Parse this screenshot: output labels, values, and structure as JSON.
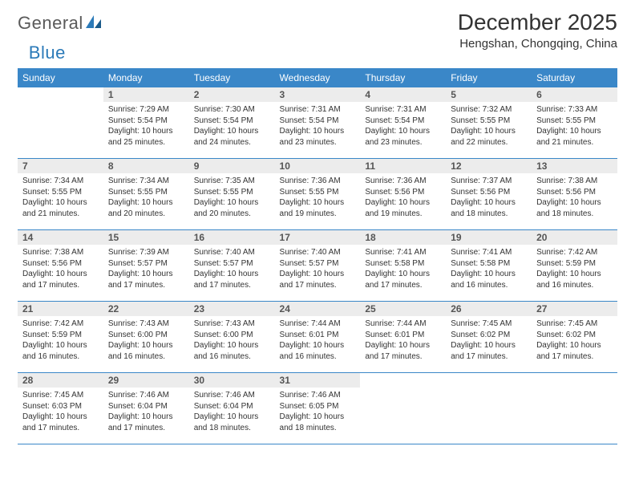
{
  "logo": {
    "word1": "General",
    "word2": "Blue",
    "color1": "#5a5a5a",
    "color2": "#2b7ab8"
  },
  "title": "December 2025",
  "location": "Hengshan, Chongqing, China",
  "header_bg": "#3a87c8",
  "number_bg": "#ececec",
  "weekdays": [
    "Sunday",
    "Monday",
    "Tuesday",
    "Wednesday",
    "Thursday",
    "Friday",
    "Saturday"
  ],
  "weeks": [
    [
      {
        "n": "",
        "empty": true,
        "sunrise": "",
        "sunset": "",
        "daylight": ""
      },
      {
        "n": "1",
        "sunrise": "Sunrise: 7:29 AM",
        "sunset": "Sunset: 5:54 PM",
        "daylight": "Daylight: 10 hours and 25 minutes."
      },
      {
        "n": "2",
        "sunrise": "Sunrise: 7:30 AM",
        "sunset": "Sunset: 5:54 PM",
        "daylight": "Daylight: 10 hours and 24 minutes."
      },
      {
        "n": "3",
        "sunrise": "Sunrise: 7:31 AM",
        "sunset": "Sunset: 5:54 PM",
        "daylight": "Daylight: 10 hours and 23 minutes."
      },
      {
        "n": "4",
        "sunrise": "Sunrise: 7:31 AM",
        "sunset": "Sunset: 5:54 PM",
        "daylight": "Daylight: 10 hours and 23 minutes."
      },
      {
        "n": "5",
        "sunrise": "Sunrise: 7:32 AM",
        "sunset": "Sunset: 5:55 PM",
        "daylight": "Daylight: 10 hours and 22 minutes."
      },
      {
        "n": "6",
        "sunrise": "Sunrise: 7:33 AM",
        "sunset": "Sunset: 5:55 PM",
        "daylight": "Daylight: 10 hours and 21 minutes."
      }
    ],
    [
      {
        "n": "7",
        "sunrise": "Sunrise: 7:34 AM",
        "sunset": "Sunset: 5:55 PM",
        "daylight": "Daylight: 10 hours and 21 minutes."
      },
      {
        "n": "8",
        "sunrise": "Sunrise: 7:34 AM",
        "sunset": "Sunset: 5:55 PM",
        "daylight": "Daylight: 10 hours and 20 minutes."
      },
      {
        "n": "9",
        "sunrise": "Sunrise: 7:35 AM",
        "sunset": "Sunset: 5:55 PM",
        "daylight": "Daylight: 10 hours and 20 minutes."
      },
      {
        "n": "10",
        "sunrise": "Sunrise: 7:36 AM",
        "sunset": "Sunset: 5:55 PM",
        "daylight": "Daylight: 10 hours and 19 minutes."
      },
      {
        "n": "11",
        "sunrise": "Sunrise: 7:36 AM",
        "sunset": "Sunset: 5:56 PM",
        "daylight": "Daylight: 10 hours and 19 minutes."
      },
      {
        "n": "12",
        "sunrise": "Sunrise: 7:37 AM",
        "sunset": "Sunset: 5:56 PM",
        "daylight": "Daylight: 10 hours and 18 minutes."
      },
      {
        "n": "13",
        "sunrise": "Sunrise: 7:38 AM",
        "sunset": "Sunset: 5:56 PM",
        "daylight": "Daylight: 10 hours and 18 minutes."
      }
    ],
    [
      {
        "n": "14",
        "sunrise": "Sunrise: 7:38 AM",
        "sunset": "Sunset: 5:56 PM",
        "daylight": "Daylight: 10 hours and 17 minutes."
      },
      {
        "n": "15",
        "sunrise": "Sunrise: 7:39 AM",
        "sunset": "Sunset: 5:57 PM",
        "daylight": "Daylight: 10 hours and 17 minutes."
      },
      {
        "n": "16",
        "sunrise": "Sunrise: 7:40 AM",
        "sunset": "Sunset: 5:57 PM",
        "daylight": "Daylight: 10 hours and 17 minutes."
      },
      {
        "n": "17",
        "sunrise": "Sunrise: 7:40 AM",
        "sunset": "Sunset: 5:57 PM",
        "daylight": "Daylight: 10 hours and 17 minutes."
      },
      {
        "n": "18",
        "sunrise": "Sunrise: 7:41 AM",
        "sunset": "Sunset: 5:58 PM",
        "daylight": "Daylight: 10 hours and 17 minutes."
      },
      {
        "n": "19",
        "sunrise": "Sunrise: 7:41 AM",
        "sunset": "Sunset: 5:58 PM",
        "daylight": "Daylight: 10 hours and 16 minutes."
      },
      {
        "n": "20",
        "sunrise": "Sunrise: 7:42 AM",
        "sunset": "Sunset: 5:59 PM",
        "daylight": "Daylight: 10 hours and 16 minutes."
      }
    ],
    [
      {
        "n": "21",
        "sunrise": "Sunrise: 7:42 AM",
        "sunset": "Sunset: 5:59 PM",
        "daylight": "Daylight: 10 hours and 16 minutes."
      },
      {
        "n": "22",
        "sunrise": "Sunrise: 7:43 AM",
        "sunset": "Sunset: 6:00 PM",
        "daylight": "Daylight: 10 hours and 16 minutes."
      },
      {
        "n": "23",
        "sunrise": "Sunrise: 7:43 AM",
        "sunset": "Sunset: 6:00 PM",
        "daylight": "Daylight: 10 hours and 16 minutes."
      },
      {
        "n": "24",
        "sunrise": "Sunrise: 7:44 AM",
        "sunset": "Sunset: 6:01 PM",
        "daylight": "Daylight: 10 hours and 16 minutes."
      },
      {
        "n": "25",
        "sunrise": "Sunrise: 7:44 AM",
        "sunset": "Sunset: 6:01 PM",
        "daylight": "Daylight: 10 hours and 17 minutes."
      },
      {
        "n": "26",
        "sunrise": "Sunrise: 7:45 AM",
        "sunset": "Sunset: 6:02 PM",
        "daylight": "Daylight: 10 hours and 17 minutes."
      },
      {
        "n": "27",
        "sunrise": "Sunrise: 7:45 AM",
        "sunset": "Sunset: 6:02 PM",
        "daylight": "Daylight: 10 hours and 17 minutes."
      }
    ],
    [
      {
        "n": "28",
        "sunrise": "Sunrise: 7:45 AM",
        "sunset": "Sunset: 6:03 PM",
        "daylight": "Daylight: 10 hours and 17 minutes."
      },
      {
        "n": "29",
        "sunrise": "Sunrise: 7:46 AM",
        "sunset": "Sunset: 6:04 PM",
        "daylight": "Daylight: 10 hours and 17 minutes."
      },
      {
        "n": "30",
        "sunrise": "Sunrise: 7:46 AM",
        "sunset": "Sunset: 6:04 PM",
        "daylight": "Daylight: 10 hours and 18 minutes."
      },
      {
        "n": "31",
        "sunrise": "Sunrise: 7:46 AM",
        "sunset": "Sunset: 6:05 PM",
        "daylight": "Daylight: 10 hours and 18 minutes."
      },
      {
        "n": "",
        "empty": true,
        "sunrise": "",
        "sunset": "",
        "daylight": ""
      },
      {
        "n": "",
        "empty": true,
        "sunrise": "",
        "sunset": "",
        "daylight": ""
      },
      {
        "n": "",
        "empty": true,
        "sunrise": "",
        "sunset": "",
        "daylight": ""
      }
    ]
  ]
}
